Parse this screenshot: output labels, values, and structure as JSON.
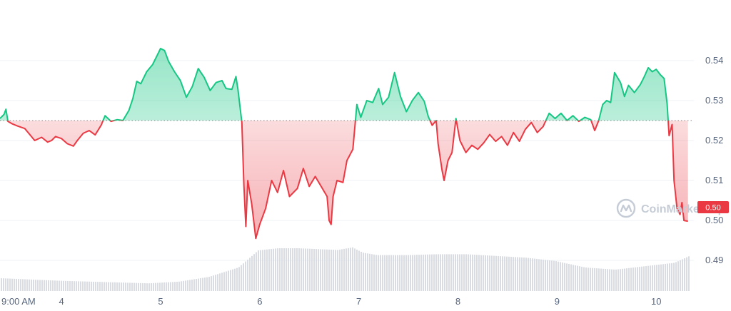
{
  "chart_data": {
    "type": "area",
    "watermark": "CoinMarketCap",
    "current_price_label": "0.50",
    "baseline_value": 0.525,
    "ylim": [
      0.482,
      0.548
    ],
    "y_ticks": [
      0.49,
      0.5,
      0.51,
      0.52,
      0.53,
      0.54
    ],
    "x_ticks": [
      {
        "x": 0.0,
        "label": "9:00 AM"
      },
      {
        "x": 0.62,
        "label": "4"
      },
      {
        "x": 1.62,
        "label": "5"
      },
      {
        "x": 2.62,
        "label": "6"
      },
      {
        "x": 3.62,
        "label": "7"
      },
      {
        "x": 4.62,
        "label": "8"
      },
      {
        "x": 5.62,
        "label": "9"
      },
      {
        "x": 6.62,
        "label": "10"
      }
    ],
    "xlim": [
      0.0,
      7.0
    ],
    "colors": {
      "up": "#16c784",
      "down": "#ea3943",
      "grid": "#eff2f5",
      "volume": "#d9dde3"
    },
    "price_series": {
      "name": "Price",
      "points": [
        [
          0.0,
          0.5255
        ],
        [
          0.04,
          0.5265
        ],
        [
          0.06,
          0.5278
        ],
        [
          0.08,
          0.5248
        ],
        [
          0.12,
          0.5242
        ],
        [
          0.18,
          0.5236
        ],
        [
          0.25,
          0.523
        ],
        [
          0.3,
          0.5215
        ],
        [
          0.35,
          0.52
        ],
        [
          0.42,
          0.5208
        ],
        [
          0.48,
          0.5196
        ],
        [
          0.52,
          0.52
        ],
        [
          0.56,
          0.521
        ],
        [
          0.62,
          0.5205
        ],
        [
          0.68,
          0.5192
        ],
        [
          0.74,
          0.5186
        ],
        [
          0.78,
          0.52
        ],
        [
          0.84,
          0.5218
        ],
        [
          0.9,
          0.5225
        ],
        [
          0.96,
          0.5214
        ],
        [
          1.02,
          0.5238
        ],
        [
          1.06,
          0.5262
        ],
        [
          1.12,
          0.5248
        ],
        [
          1.18,
          0.5252
        ],
        [
          1.24,
          0.525
        ],
        [
          1.3,
          0.5275
        ],
        [
          1.34,
          0.5305
        ],
        [
          1.38,
          0.5348
        ],
        [
          1.42,
          0.5342
        ],
        [
          1.48,
          0.5372
        ],
        [
          1.54,
          0.539
        ],
        [
          1.58,
          0.541
        ],
        [
          1.62,
          0.543
        ],
        [
          1.66,
          0.5425
        ],
        [
          1.7,
          0.5398
        ],
        [
          1.76,
          0.5372
        ],
        [
          1.82,
          0.535
        ],
        [
          1.88,
          0.5308
        ],
        [
          1.94,
          0.5335
        ],
        [
          2.0,
          0.538
        ],
        [
          2.06,
          0.5358
        ],
        [
          2.12,
          0.5325
        ],
        [
          2.18,
          0.5345
        ],
        [
          2.24,
          0.535
        ],
        [
          2.28,
          0.533
        ],
        [
          2.34,
          0.5328
        ],
        [
          2.38,
          0.536
        ],
        [
          2.4,
          0.5328
        ],
        [
          2.44,
          0.5245
        ],
        [
          2.46,
          0.509
        ],
        [
          2.48,
          0.4985
        ],
        [
          2.5,
          0.51
        ],
        [
          2.54,
          0.504
        ],
        [
          2.58,
          0.4955
        ],
        [
          2.62,
          0.499
        ],
        [
          2.68,
          0.503
        ],
        [
          2.74,
          0.51
        ],
        [
          2.8,
          0.507
        ],
        [
          2.86,
          0.5125
        ],
        [
          2.92,
          0.506
        ],
        [
          3.0,
          0.508
        ],
        [
          3.06,
          0.513
        ],
        [
          3.12,
          0.5085
        ],
        [
          3.18,
          0.511
        ],
        [
          3.24,
          0.5085
        ],
        [
          3.3,
          0.506
        ],
        [
          3.32,
          0.5
        ],
        [
          3.34,
          0.499
        ],
        [
          3.36,
          0.506
        ],
        [
          3.4,
          0.51
        ],
        [
          3.46,
          0.5095
        ],
        [
          3.5,
          0.515
        ],
        [
          3.56,
          0.5178
        ],
        [
          3.6,
          0.529
        ],
        [
          3.64,
          0.5258
        ],
        [
          3.7,
          0.53
        ],
        [
          3.76,
          0.5295
        ],
        [
          3.82,
          0.533
        ],
        [
          3.86,
          0.529
        ],
        [
          3.92,
          0.5308
        ],
        [
          3.98,
          0.537
        ],
        [
          4.04,
          0.531
        ],
        [
          4.1,
          0.5272
        ],
        [
          4.16,
          0.53
        ],
        [
          4.22,
          0.532
        ],
        [
          4.28,
          0.5298
        ],
        [
          4.32,
          0.526
        ],
        [
          4.36,
          0.5238
        ],
        [
          4.4,
          0.525
        ],
        [
          4.42,
          0.5192
        ],
        [
          4.46,
          0.5125
        ],
        [
          4.48,
          0.51
        ],
        [
          4.52,
          0.515
        ],
        [
          4.56,
          0.517
        ],
        [
          4.6,
          0.5255
        ],
        [
          4.64,
          0.52
        ],
        [
          4.7,
          0.517
        ],
        [
          4.76,
          0.5188
        ],
        [
          4.82,
          0.5178
        ],
        [
          4.88,
          0.5194
        ],
        [
          4.94,
          0.5215
        ],
        [
          5.0,
          0.5198
        ],
        [
          5.06,
          0.521
        ],
        [
          5.12,
          0.5188
        ],
        [
          5.18,
          0.522
        ],
        [
          5.24,
          0.5198
        ],
        [
          5.3,
          0.5228
        ],
        [
          5.36,
          0.5245
        ],
        [
          5.42,
          0.522
        ],
        [
          5.48,
          0.5235
        ],
        [
          5.54,
          0.5268
        ],
        [
          5.6,
          0.5255
        ],
        [
          5.66,
          0.5268
        ],
        [
          5.72,
          0.525
        ],
        [
          5.78,
          0.5262
        ],
        [
          5.84,
          0.5248
        ],
        [
          5.9,
          0.5258
        ],
        [
          5.96,
          0.5252
        ],
        [
          6.0,
          0.5225
        ],
        [
          6.04,
          0.525
        ],
        [
          6.08,
          0.529
        ],
        [
          6.12,
          0.53
        ],
        [
          6.16,
          0.5295
        ],
        [
          6.2,
          0.537
        ],
        [
          6.26,
          0.5345
        ],
        [
          6.3,
          0.531
        ],
        [
          6.34,
          0.5338
        ],
        [
          6.4,
          0.532
        ],
        [
          6.46,
          0.534
        ],
        [
          6.5,
          0.536
        ],
        [
          6.54,
          0.5382
        ],
        [
          6.58,
          0.5372
        ],
        [
          6.62,
          0.5378
        ],
        [
          6.66,
          0.5365
        ],
        [
          6.7,
          0.5355
        ],
        [
          6.73,
          0.5292
        ],
        [
          6.75,
          0.5212
        ],
        [
          6.78,
          0.524
        ],
        [
          6.8,
          0.51
        ],
        [
          6.83,
          0.503
        ],
        [
          6.86,
          0.5015
        ],
        [
          6.88,
          0.5045
        ],
        [
          6.9,
          0.5
        ],
        [
          6.94,
          0.4998
        ]
      ]
    },
    "volume_series": {
      "name": "Volume",
      "points": [
        [
          0.0,
          0.3
        ],
        [
          0.3,
          0.27
        ],
        [
          0.6,
          0.24
        ],
        [
          0.9,
          0.22
        ],
        [
          1.2,
          0.2
        ],
        [
          1.5,
          0.18
        ],
        [
          1.8,
          0.22
        ],
        [
          2.1,
          0.33
        ],
        [
          2.4,
          0.55
        ],
        [
          2.6,
          0.95
        ],
        [
          2.8,
          1.0
        ],
        [
          3.0,
          1.0
        ],
        [
          3.2,
          0.98
        ],
        [
          3.4,
          0.96
        ],
        [
          3.55,
          1.02
        ],
        [
          3.65,
          0.9
        ],
        [
          3.8,
          0.84
        ],
        [
          4.1,
          0.84
        ],
        [
          4.4,
          0.86
        ],
        [
          4.7,
          0.86
        ],
        [
          5.0,
          0.82
        ],
        [
          5.3,
          0.78
        ],
        [
          5.6,
          0.7
        ],
        [
          5.9,
          0.55
        ],
        [
          6.2,
          0.5
        ],
        [
          6.5,
          0.58
        ],
        [
          6.8,
          0.66
        ],
        [
          6.95,
          0.82
        ]
      ]
    }
  }
}
